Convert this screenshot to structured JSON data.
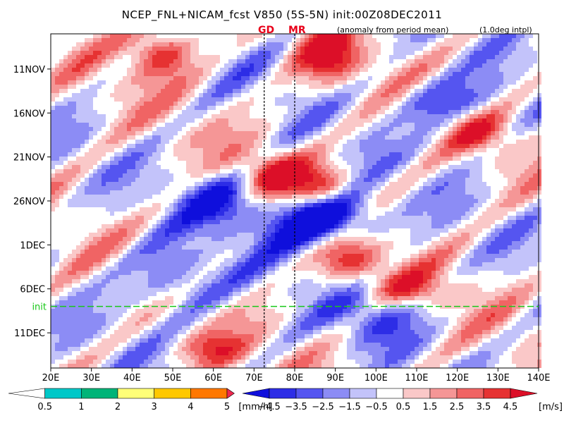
{
  "header": {
    "title": "NCEP_FNL+NICAM_fcst V850 (5S-5N) init:00Z08DEC2011",
    "subnote": "(anomaly from period mean)",
    "interp": "(1.0deg intpl)",
    "markers": [
      {
        "label": "GD",
        "lon": 72.5
      },
      {
        "label": "MR",
        "lon": 80
      }
    ]
  },
  "chart_data": {
    "type": "heatmap",
    "description_free": true,
    "x_axis": {
      "unit": "longitude",
      "range": [
        20,
        140
      ],
      "ticks": [
        20,
        30,
        40,
        50,
        60,
        70,
        80,
        90,
        100,
        110,
        120,
        130,
        140
      ],
      "tick_labels": [
        "20E",
        "30E",
        "40E",
        "50E",
        "60E",
        "70E",
        "80E",
        "90E",
        "100E",
        "110E",
        "120E",
        "130E",
        "140E"
      ]
    },
    "y_axis": {
      "unit": "date",
      "range": [
        "2011-11-07",
        "2011-12-15"
      ],
      "ticks": [
        "2011-11-11",
        "2011-11-16",
        "2011-11-21",
        "2011-11-26",
        "2011-12-01",
        "2011-12-06",
        "2011-12-11"
      ],
      "tick_labels": [
        "11NOV",
        "16NOV",
        "21NOV",
        "26NOV",
        "1DEC",
        "6DEC",
        "11DEC"
      ],
      "direction": "time increases downward"
    },
    "init_line": {
      "label": "init",
      "date": "2011-12-08",
      "color": "#19c819"
    },
    "precip_colorbar": {
      "unit": "[mm/h]",
      "levels": [
        0.5,
        1,
        2,
        3,
        4,
        5
      ],
      "colors": [
        "#ffffff",
        "#00c8c8",
        "#00b478",
        "#ffff78",
        "#ffc800",
        "#ff7800",
        "#f02850"
      ]
    },
    "wind_colorbar": {
      "unit": "[m/s]",
      "levels": [
        -4.5,
        -3.5,
        -2.5,
        -1.5,
        -0.5,
        0.5,
        1.5,
        2.5,
        3.5,
        4.5
      ],
      "tick_labels": [
        "-4.5",
        "-3.5",
        "-2.5",
        "-1.5",
        "-0.5",
        "0.5",
        "1.5",
        "2.5",
        "3.5",
        "4.5"
      ],
      "colors": [
        "#0f0fdc",
        "#2d2de6",
        "#5555f0",
        "#8c8cf5",
        "#c3c3fa",
        "#ffffff",
        "#fac8c8",
        "#f59696",
        "#f06464",
        "#e63232",
        "#dc0f28"
      ]
    },
    "dominant_features": [
      {
        "feature": "easterly anomaly band",
        "from": [
          "2011-11-24",
          72
        ],
        "to": [
          "2011-12-02",
          95
        ],
        "sign": "negative"
      },
      {
        "feature": "westerly anomaly band",
        "from": [
          "2011-11-22",
          65
        ],
        "to": [
          "2011-11-27",
          95
        ],
        "sign": "positive"
      },
      {
        "feature": "westerly anomaly",
        "center": [
          "2011-11-09",
          45
        ],
        "sign": "positive"
      }
    ]
  }
}
